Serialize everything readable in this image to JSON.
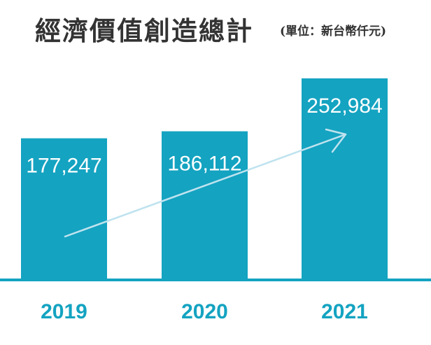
{
  "colors": {
    "bar": "#14a3c1",
    "arrow": "#bfe3ef",
    "title": "#333333"
  },
  "chart_data": {
    "type": "bar",
    "title": "經濟價值創造總計",
    "subtitle": "(單位：新台幣仟元)",
    "categories": [
      "2019",
      "2020",
      "2021"
    ],
    "values": [
      177247,
      186112,
      252984
    ],
    "value_labels": [
      "177,247",
      "186,112",
      "252,984"
    ],
    "xlabel": "",
    "ylabel": "",
    "grid": false,
    "trend_arrow": true
  }
}
